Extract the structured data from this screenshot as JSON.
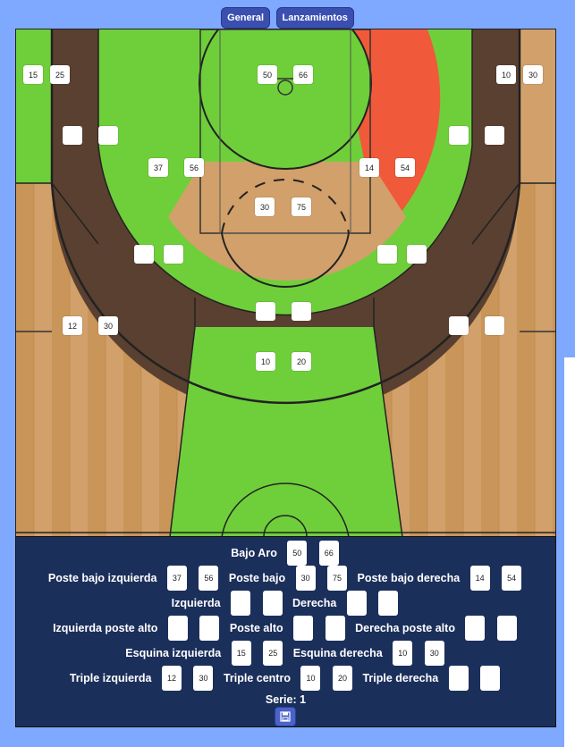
{
  "tabs": {
    "general": "General",
    "shots": "Lanzamientos"
  },
  "court": {
    "zones": {
      "corner_left": [
        "15",
        "25"
      ],
      "wing_left_high": [
        "",
        ""
      ],
      "poste_bajo_left": [
        "37",
        "56"
      ],
      "top_key": [
        "50",
        "66"
      ],
      "corner_right": [
        "10",
        "30"
      ],
      "wing_right_high": [
        "",
        ""
      ],
      "poste_bajo_right": [
        "14",
        "54"
      ],
      "paint_center": [
        "30",
        "75"
      ],
      "elbow_left": [
        "",
        ""
      ],
      "elbow_right": [
        "",
        ""
      ],
      "top_arc": [
        "",
        ""
      ],
      "triple_left": [
        "12",
        "30"
      ],
      "triple_right": [
        "",
        ""
      ],
      "triple_center": [
        "10",
        "20"
      ]
    }
  },
  "stats": {
    "bajo_aro": {
      "label": "Bajo Aro",
      "made": "50",
      "att": "66"
    },
    "poste_bajo_izq": {
      "label": "Poste bajo izquierda",
      "made": "37",
      "att": "56"
    },
    "poste_bajo": {
      "label": "Poste bajo",
      "made": "30",
      "att": "75"
    },
    "poste_bajo_der": {
      "label": "Poste bajo derecha",
      "made": "14",
      "att": "54"
    },
    "izquierda": {
      "label": "Izquierda",
      "made": "",
      "att": ""
    },
    "derecha": {
      "label": "Derecha",
      "made": "",
      "att": ""
    },
    "izq_poste_alto": {
      "label": "Izquierda poste alto",
      "made": "",
      "att": ""
    },
    "poste_alto": {
      "label": "Poste alto",
      "made": "",
      "att": ""
    },
    "der_poste_alto": {
      "label": "Derecha poste alto",
      "made": "",
      "att": ""
    },
    "esquina_izq": {
      "label": "Esquina izquierda",
      "made": "15",
      "att": "25"
    },
    "esquina_der": {
      "label": "Esquina derecha",
      "made": "10",
      "att": "30"
    },
    "triple_izq": {
      "label": "Triple izquierda",
      "made": "12",
      "att": "30"
    },
    "triple_centro": {
      "label": "Triple centro",
      "made": "10",
      "att": "20"
    },
    "triple_der": {
      "label": "Triple derecha",
      "made": "",
      "att": ""
    },
    "serie": "Serie: 1"
  },
  "icons": {
    "save": "save-icon"
  },
  "colors": {
    "good": "#6FCF3A",
    "bad": "#F05A3A",
    "neutral": "#5A4030",
    "panel": "#1B2F5B",
    "tab": "#3A4FB0"
  }
}
